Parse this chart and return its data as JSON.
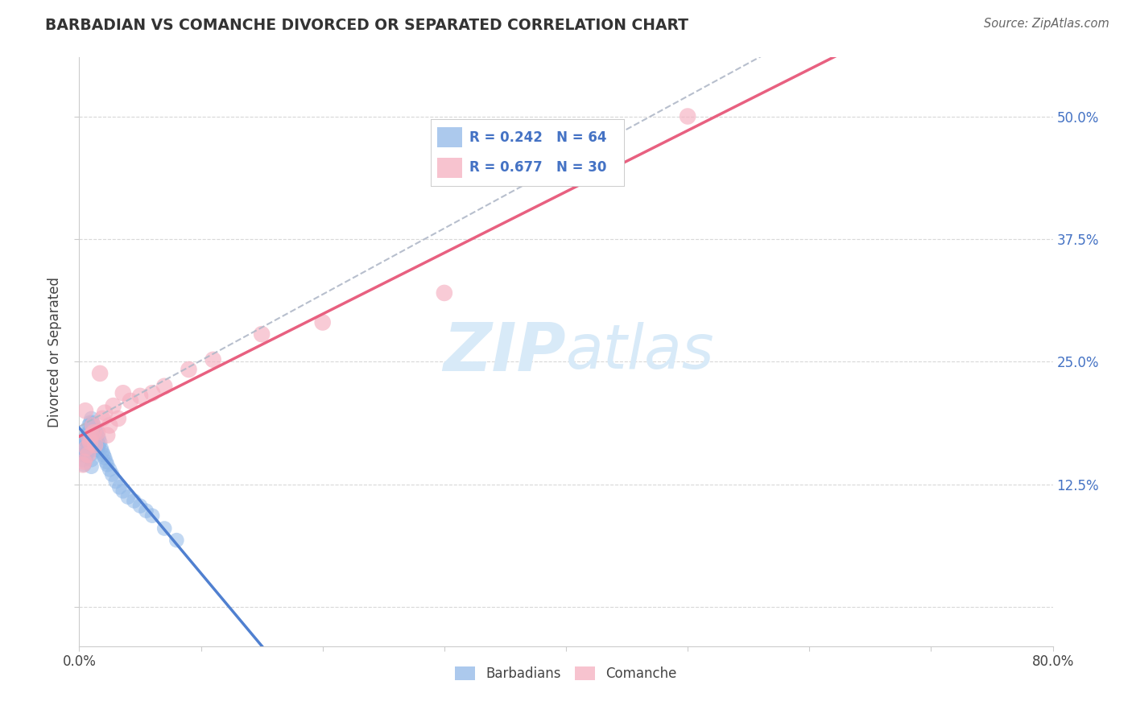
{
  "title": "BARBADIAN VS COMANCHE DIVORCED OR SEPARATED CORRELATION CHART",
  "source_text": "Source: ZipAtlas.com",
  "ylabel": "Divorced or Separated",
  "xlim": [
    0.0,
    0.8
  ],
  "ylim": [
    -0.04,
    0.56
  ],
  "xtick_positions": [
    0.0,
    0.1,
    0.2,
    0.3,
    0.4,
    0.5,
    0.6,
    0.7,
    0.8
  ],
  "xtick_labels": [
    "0.0%",
    "",
    "",
    "",
    "",
    "",
    "",
    "",
    "80.0%"
  ],
  "ytick_positions": [
    0.0,
    0.125,
    0.25,
    0.375,
    0.5
  ],
  "ytick_labels": [
    "",
    "12.5%",
    "25.0%",
    "37.5%",
    "50.0%"
  ],
  "barbadian_r": 0.242,
  "barbadian_n": 64,
  "comanche_r": 0.677,
  "comanche_n": 30,
  "blue_color": "#90b8e8",
  "pink_color": "#f5afc0",
  "blue_line_color": "#5080d0",
  "pink_line_color": "#e86080",
  "gray_dash_color": "#b0b8c8",
  "legend_text_color": "#4472c4",
  "title_color": "#333333",
  "source_color": "#666666",
  "grid_color": "#d8d8d8",
  "background_color": "#ffffff",
  "watermark_color": "#d8eaf8",
  "barbadian_x": [
    0.002,
    0.003,
    0.004,
    0.004,
    0.005,
    0.005,
    0.005,
    0.006,
    0.006,
    0.006,
    0.007,
    0.007,
    0.007,
    0.007,
    0.008,
    0.008,
    0.008,
    0.008,
    0.009,
    0.009,
    0.009,
    0.009,
    0.01,
    0.01,
    0.01,
    0.01,
    0.01,
    0.01,
    0.01,
    0.01,
    0.011,
    0.011,
    0.011,
    0.012,
    0.012,
    0.012,
    0.013,
    0.013,
    0.014,
    0.014,
    0.015,
    0.015,
    0.015,
    0.016,
    0.016,
    0.017,
    0.018,
    0.019,
    0.02,
    0.021,
    0.022,
    0.023,
    0.025,
    0.027,
    0.03,
    0.033,
    0.036,
    0.04,
    0.045,
    0.05,
    0.055,
    0.06,
    0.07,
    0.08
  ],
  "barbadian_y": [
    0.155,
    0.15,
    0.165,
    0.145,
    0.17,
    0.16,
    0.155,
    0.175,
    0.168,
    0.155,
    0.18,
    0.172,
    0.165,
    0.158,
    0.185,
    0.178,
    0.17,
    0.162,
    0.188,
    0.18,
    0.173,
    0.165,
    0.192,
    0.185,
    0.178,
    0.17,
    0.163,
    0.156,
    0.15,
    0.143,
    0.188,
    0.182,
    0.175,
    0.185,
    0.178,
    0.17,
    0.182,
    0.175,
    0.178,
    0.172,
    0.175,
    0.168,
    0.16,
    0.172,
    0.165,
    0.168,
    0.162,
    0.158,
    0.155,
    0.152,
    0.148,
    0.145,
    0.14,
    0.135,
    0.128,
    0.122,
    0.118,
    0.112,
    0.108,
    0.103,
    0.098,
    0.093,
    0.08,
    0.068
  ],
  "comanche_x": [
    0.003,
    0.004,
    0.005,
    0.006,
    0.007,
    0.008,
    0.009,
    0.01,
    0.011,
    0.012,
    0.013,
    0.015,
    0.017,
    0.019,
    0.021,
    0.023,
    0.025,
    0.028,
    0.032,
    0.036,
    0.042,
    0.05,
    0.06,
    0.07,
    0.09,
    0.11,
    0.15,
    0.2,
    0.3,
    0.5
  ],
  "comanche_y": [
    0.145,
    0.148,
    0.2,
    0.162,
    0.155,
    0.172,
    0.168,
    0.175,
    0.185,
    0.178,
    0.165,
    0.178,
    0.238,
    0.192,
    0.198,
    0.175,
    0.185,
    0.205,
    0.192,
    0.218,
    0.21,
    0.215,
    0.218,
    0.225,
    0.242,
    0.252,
    0.278,
    0.29,
    0.32,
    0.5
  ]
}
